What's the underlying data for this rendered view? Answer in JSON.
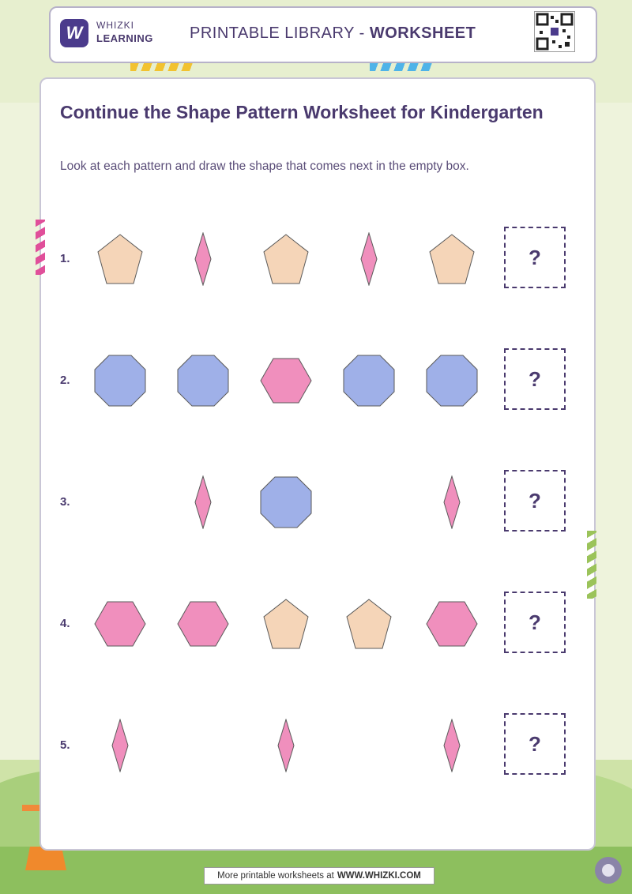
{
  "header": {
    "logo_letter": "W",
    "brand_line1": "WHIZKI",
    "brand_line2": "LEARNING",
    "library_prefix": "PRINTABLE LIBRARY - ",
    "library_bold": "WORKSHEET"
  },
  "worksheet": {
    "title": "Continue the Shape Pattern Worksheet for Kindergarten",
    "instructions": "Look at each pattern and draw the shape that comes next in the empty box."
  },
  "colors": {
    "peach": "#f5d5b8",
    "pink": "#f08fbd",
    "blue": "#9fb0e8",
    "ink": "#4a3a6e"
  },
  "rows": [
    {
      "number": "1.",
      "shapes": [
        "pentagon-peach",
        "rhombus-pink",
        "pentagon-peach",
        "rhombus-pink",
        "pentagon-peach"
      ],
      "answer": "?"
    },
    {
      "number": "2.",
      "shapes": [
        "octagon-blue",
        "octagon-blue",
        "hexagon-pink",
        "octagon-blue",
        "octagon-blue"
      ],
      "answer": "?"
    },
    {
      "number": "3.",
      "shapes": [
        "",
        "rhombus-pink",
        "octagon-blue",
        "",
        "rhombus-pink"
      ],
      "answer": "?"
    },
    {
      "number": "4.",
      "shapes": [
        "hexagon-pink",
        "hexagon-pink",
        "pentagon-peach",
        "pentagon-peach",
        "hexagon-pink"
      ],
      "answer": "?"
    },
    {
      "number": "5.",
      "shapes": [
        "rhombus-pink",
        "",
        "rhombus-pink",
        "",
        "rhombus-pink"
      ],
      "answer": "?"
    }
  ],
  "footer": {
    "text": "More printable worksheets at",
    "link": "WWW.WHIZKI.COM"
  }
}
